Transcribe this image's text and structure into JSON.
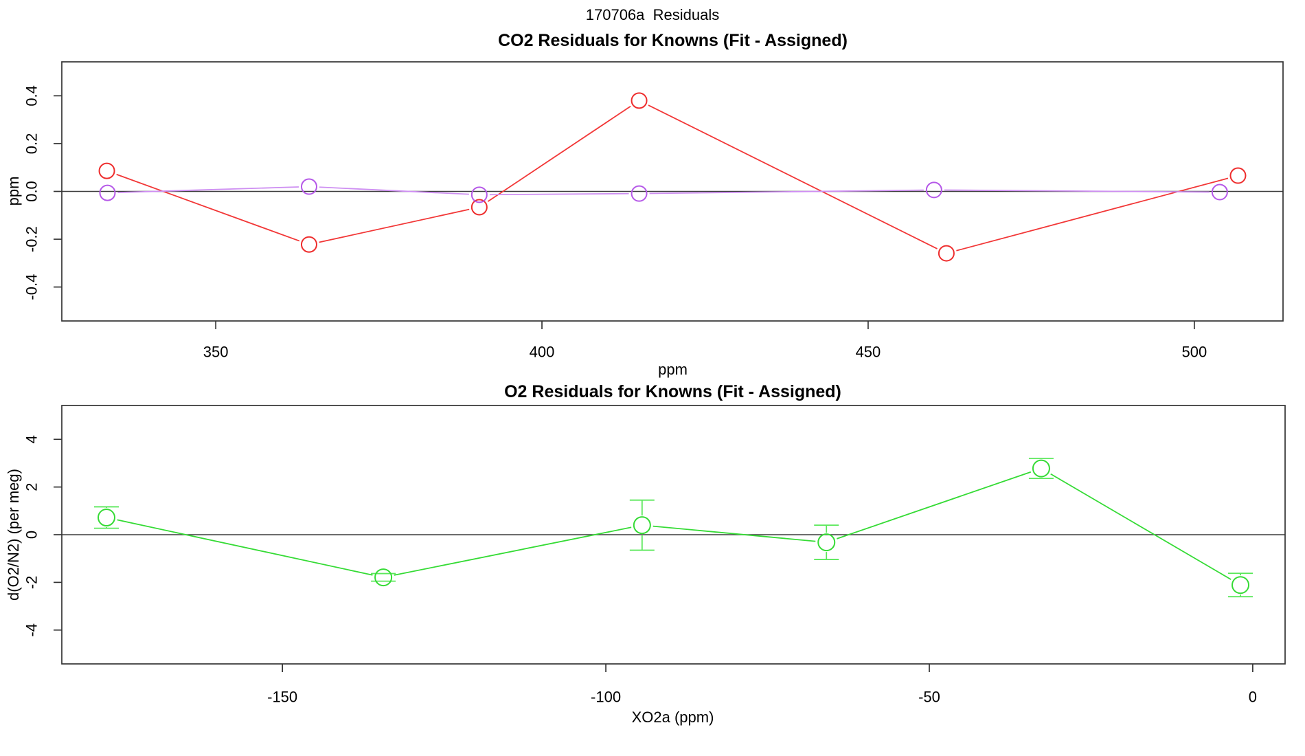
{
  "main_title": "170706a  Residuals",
  "colors": {
    "axis": "#333333",
    "zero_line": "#3c3c3c",
    "red_series": "#ee2c2c",
    "red_line": "#f23737",
    "purple_marker": "#b558e8",
    "purple_line": "#ce8ff2",
    "green_series": "#35db35",
    "green_errorbar": "#5be85b"
  },
  "chart_data": [
    {
      "type": "line",
      "title": "CO2 Residuals for Knowns (Fit - Assigned)",
      "xlabel": "ppm",
      "ylabel": "ppm",
      "xlim": [
        326.4,
        513.6
      ],
      "ylim": [
        -0.542,
        0.542
      ],
      "grid": false,
      "zero_line": true,
      "xticks": [
        {
          "v": 350,
          "label": "350"
        },
        {
          "v": 400,
          "label": "400"
        },
        {
          "v": 450,
          "label": "450"
        },
        {
          "v": 500,
          "label": "500"
        }
      ],
      "yticks": [
        {
          "v": -0.4,
          "label": "-0.4"
        },
        {
          "v": -0.2,
          "label": "-0.2"
        },
        {
          "v": 0.0,
          "label": "0.0"
        },
        {
          "v": 0.2,
          "label": "0.2"
        },
        {
          "v": 0.4,
          "label": "0.4"
        }
      ],
      "series": [
        {
          "name": "co2-residual-red",
          "marker": "open-circle",
          "line_color_key": "red_line",
          "marker_color_key": "red_series",
          "points": [
            {
              "x": 333.3,
              "y": 0.086
            },
            {
              "x": 364.3,
              "y": -0.222
            },
            {
              "x": 390.4,
              "y": -0.066
            },
            {
              "x": 414.9,
              "y": 0.38
            },
            {
              "x": 462.0,
              "y": -0.259
            },
            {
              "x": 506.7,
              "y": 0.066
            }
          ]
        },
        {
          "name": "co2-residual-purple",
          "marker": "open-circle",
          "line_color_key": "purple_line",
          "marker_color_key": "purple_marker",
          "points": [
            {
              "x": 333.4,
              "y": -0.006
            },
            {
              "x": 364.3,
              "y": 0.02
            },
            {
              "x": 390.4,
              "y": -0.014
            },
            {
              "x": 414.9,
              "y": -0.009
            },
            {
              "x": 460.1,
              "y": 0.006
            },
            {
              "x": 503.9,
              "y": -0.003
            }
          ]
        }
      ]
    },
    {
      "type": "line",
      "title": "O2 Residuals for Knowns (Fit - Assigned)",
      "xlabel": "XO2a (ppm)",
      "ylabel": "d(O2/N2) (per meg)",
      "xlim": [
        -184.1,
        5.0
      ],
      "ylim": [
        -5.42,
        5.42
      ],
      "grid": false,
      "zero_line": true,
      "xticks": [
        {
          "v": -150,
          "label": "-150"
        },
        {
          "v": -100,
          "label": "-100"
        },
        {
          "v": -50,
          "label": "-50"
        },
        {
          "v": 0,
          "label": "0"
        }
      ],
      "yticks": [
        {
          "v": -4,
          "label": "-4"
        },
        {
          "v": -2,
          "label": "-2"
        },
        {
          "v": 0,
          "label": "0"
        },
        {
          "v": 2,
          "label": "2"
        },
        {
          "v": 4,
          "label": "4"
        }
      ],
      "series": [
        {
          "name": "o2-residual-green",
          "marker": "open-circle",
          "line_color_key": "green_series",
          "marker_color_key": "green_series",
          "errorbar_color_key": "green_errorbar",
          "points": [
            {
              "x": -177.2,
              "y": 0.72,
              "err": 0.45
            },
            {
              "x": -134.4,
              "y": -1.79,
              "err": 0.16
            },
            {
              "x": -94.4,
              "y": 0.4,
              "err": 1.05
            },
            {
              "x": -65.9,
              "y": -0.32,
              "err": 0.72
            },
            {
              "x": -32.7,
              "y": 2.78,
              "err": 0.42
            },
            {
              "x": -1.9,
              "y": -2.11,
              "err": 0.49
            }
          ]
        }
      ]
    }
  ]
}
